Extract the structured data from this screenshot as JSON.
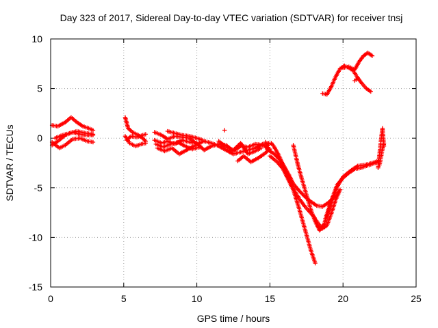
{
  "chart_data": {
    "type": "scatter",
    "title": "Day 323 of 2017, Sidereal Day-to-day VTEC variation (SDTVAR) for receiver tnsj",
    "xlabel": "GPS time / hours",
    "ylabel": "SDTVAR / TECUs",
    "xlim": [
      0,
      25
    ],
    "ylim": [
      -15,
      10
    ],
    "xticks": [
      0,
      5,
      10,
      15,
      20,
      25
    ],
    "yticks": [
      -15,
      -10,
      -5,
      0,
      5,
      10
    ],
    "grid": true,
    "marker": "+",
    "color": "#ff0000",
    "series": [
      {
        "name": "track-1",
        "x": [
          0.1,
          0.5,
          1.0,
          1.4,
          1.8,
          2.2,
          2.6,
          2.9
        ],
        "y": [
          1.3,
          1.2,
          1.6,
          2.1,
          1.6,
          1.2,
          1.0,
          0.8
        ]
      },
      {
        "name": "track-2",
        "x": [
          0.1,
          0.5,
          1.0,
          1.5,
          2.0,
          2.4,
          2.9
        ],
        "y": [
          -0.7,
          -0.3,
          0.3,
          0.6,
          0.4,
          0.3,
          0.3
        ]
      },
      {
        "name": "track-3",
        "x": [
          0.1,
          0.6,
          1.0,
          1.5,
          2.0,
          2.5,
          2.9
        ],
        "y": [
          -0.4,
          -1.0,
          -0.7,
          -0.1,
          0.0,
          -0.3,
          -0.4
        ]
      },
      {
        "name": "track-4",
        "x": [
          0.3,
          0.8,
          1.3,
          1.8,
          2.4,
          2.9
        ],
        "y": [
          0.0,
          0.3,
          0.5,
          0.7,
          0.5,
          0.4
        ]
      },
      {
        "name": "track-5",
        "x": [
          5.1,
          5.3,
          5.6,
          6.0,
          6.3,
          6.5
        ],
        "y": [
          2.1,
          1.0,
          0.6,
          0.3,
          0.0,
          -0.3
        ]
      },
      {
        "name": "track-6",
        "x": [
          5.1,
          5.4,
          5.8,
          6.2,
          6.5
        ],
        "y": [
          0.2,
          -0.5,
          -0.8,
          -0.6,
          -0.5
        ]
      },
      {
        "name": "track-7",
        "x": [
          5.2,
          5.5,
          5.9,
          6.3,
          6.5
        ],
        "y": [
          -0.2,
          0.2,
          0.1,
          0.3,
          0.4
        ]
      },
      {
        "name": "track-8",
        "x": [
          7.1,
          7.6,
          8.0,
          8.5,
          9.0,
          9.5,
          10.0,
          10.5,
          11.0,
          11.5,
          12.0,
          12.5,
          13.0,
          13.5,
          14.0,
          14.5,
          14.9
        ],
        "y": [
          -0.2,
          -0.5,
          -0.3,
          -0.6,
          -0.2,
          -0.4,
          -0.5,
          -1.2,
          -0.8,
          -0.6,
          -0.7,
          -1.3,
          -0.8,
          -0.9,
          -0.6,
          -0.7,
          -1.0
        ]
      },
      {
        "name": "track-9",
        "x": [
          7.1,
          7.6,
          8.0,
          8.5,
          9.0,
          9.5,
          10.0,
          10.5,
          11.0,
          11.5,
          12.0,
          12.5,
          13.0,
          13.5,
          14.0,
          14.5,
          14.9
        ],
        "y": [
          0.6,
          0.3,
          -0.1,
          0.2,
          0.1,
          0.0,
          -0.6,
          -0.3,
          -0.5,
          -0.8,
          -1.2,
          -1.6,
          -1.4,
          -1.2,
          -1.0,
          -0.6,
          -0.5
        ]
      },
      {
        "name": "track-10",
        "x": [
          7.3,
          7.8,
          8.3,
          8.8,
          9.3,
          9.8,
          10.2
        ],
        "y": [
          -1.0,
          -1.3,
          -1.0,
          -1.6,
          -1.2,
          -0.8,
          -0.5
        ]
      },
      {
        "name": "track-11",
        "x": [
          8.0,
          8.5,
          9.0,
          9.5,
          10.0,
          10.4
        ],
        "y": [
          0.7,
          0.5,
          0.3,
          0.2,
          0.0,
          -0.2
        ]
      },
      {
        "name": "track-12",
        "x": [
          7.2,
          7.7,
          8.2,
          8.7,
          9.2,
          9.7,
          10.2
        ],
        "y": [
          -0.6,
          -0.9,
          -0.6,
          -0.4,
          -0.8,
          -1.1,
          -0.9
        ]
      },
      {
        "name": "track-13",
        "x": [
          11.5,
          12.0,
          12.5,
          13.0,
          13.5,
          14.0,
          14.4
        ],
        "y": [
          -0.3,
          -0.9,
          -1.2,
          -0.5,
          -1.6,
          -1.3,
          -1.0
        ]
      },
      {
        "name": "track-14",
        "x": [
          12.8,
          13.2,
          13.7,
          14.2,
          14.6,
          15.0
        ],
        "y": [
          -2.3,
          -1.8,
          -2.4,
          -2.0,
          -1.6,
          -1.1
        ]
      },
      {
        "name": "track-15",
        "x": [
          14.7,
          14.8,
          14.9,
          15.1,
          15.3,
          15.6,
          15.9,
          16.2,
          16.6,
          17.0,
          17.4,
          17.8,
          18.1
        ],
        "y": [
          -0.4,
          -1.1,
          -0.6,
          -0.5,
          -0.9,
          -1.7,
          -2.7,
          -3.8,
          -5.2,
          -7.1,
          -9.2,
          -11.3,
          -12.6
        ]
      },
      {
        "name": "track-16",
        "x": [
          14.9,
          15.3,
          15.7,
          16.0,
          16.3,
          16.6,
          17.0,
          17.4,
          17.8,
          18.2,
          18.6,
          19.0,
          19.3,
          19.6,
          19.8
        ],
        "y": [
          -1.2,
          -1.6,
          -2.2,
          -2.9,
          -3.7,
          -4.6,
          -5.3,
          -5.9,
          -6.4,
          -6.8,
          -6.9,
          -6.5,
          -6.1,
          -5.6,
          -5.2
        ]
      },
      {
        "name": "track-17",
        "x": [
          15.0,
          15.5,
          15.9,
          16.2,
          16.5,
          16.8,
          17.1,
          17.4,
          17.7,
          18.0,
          18.3,
          18.6,
          18.9,
          19.2,
          19.5,
          19.8
        ],
        "y": [
          -1.8,
          -2.4,
          -3.1,
          -4.0,
          -4.9,
          -5.6,
          -6.3,
          -6.9,
          -7.4,
          -7.9,
          -8.6,
          -9.1,
          -8.8,
          -7.6,
          -6.2,
          -5.2
        ]
      },
      {
        "name": "track-18",
        "x": [
          16.6,
          16.9,
          17.2,
          17.5,
          17.8,
          18.1,
          18.4,
          18.7,
          19.0,
          19.3,
          19.6,
          20.0,
          20.4,
          20.8,
          21.2,
          21.6,
          22.0,
          22.4
        ],
        "y": [
          -0.7,
          -2.6,
          -4.2,
          -5.7,
          -7.2,
          -8.4,
          -9.3,
          -8.7,
          -7.4,
          -5.9,
          -4.7,
          -4.0,
          -3.5,
          -3.1,
          -3.0,
          -2.8,
          -2.6,
          -2.4
        ]
      },
      {
        "name": "track-19",
        "x": [
          18.8,
          19.2,
          19.6,
          20.0,
          20.5,
          21.0,
          21.5,
          22.0,
          22.4
        ],
        "y": [
          -8.1,
          -6.3,
          -4.9,
          -3.9,
          -3.3,
          -2.8,
          -2.7,
          -2.5,
          -2.3
        ]
      },
      {
        "name": "track-20",
        "x": [
          22.4,
          22.5,
          22.6,
          22.7,
          22.8
        ],
        "y": [
          -3.0,
          -1.6,
          -0.2,
          1.0,
          -0.8
        ]
      },
      {
        "name": "track-21",
        "x": [
          22.5,
          22.6,
          22.7,
          22.8
        ],
        "y": [
          -2.7,
          -1.9,
          -1.1,
          -0.5
        ]
      },
      {
        "name": "track-22",
        "x": [
          18.6,
          18.9,
          19.2,
          19.5,
          19.8,
          20.1,
          20.4,
          20.7,
          21.0,
          21.3,
          21.6,
          21.9
        ],
        "y": [
          4.5,
          4.4,
          5.2,
          6.2,
          7.0,
          7.3,
          7.1,
          6.8,
          6.1,
          5.5,
          5.0,
          4.7
        ]
      },
      {
        "name": "track-23",
        "x": [
          20.0,
          20.4,
          20.8,
          21.1,
          21.4,
          21.7,
          22.0
        ],
        "y": [
          7.1,
          7.2,
          6.9,
          7.7,
          8.3,
          8.6,
          8.3
        ]
      },
      {
        "name": "track-24",
        "x": [
          20.8,
          21.0
        ],
        "y": [
          5.8,
          6.0
        ]
      },
      {
        "name": "track-25",
        "x": [
          11.9
        ],
        "y": [
          0.8
        ]
      }
    ]
  }
}
